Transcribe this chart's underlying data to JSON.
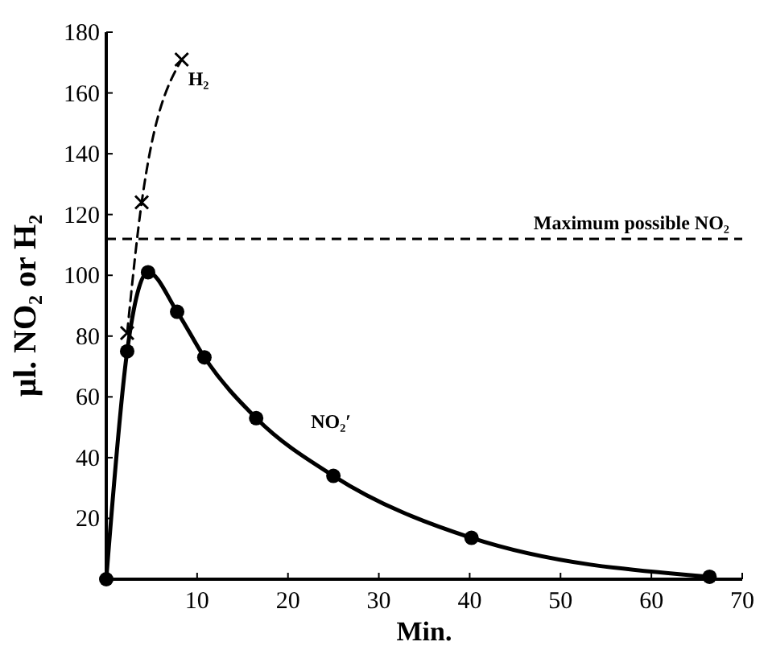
{
  "chart_data": {
    "type": "line",
    "xlabel": "Min.",
    "ylabel": "µl. NO₂ or H₂",
    "xlim": [
      0,
      70
    ],
    "ylim": [
      0,
      180
    ],
    "xticks": [
      10,
      20,
      30,
      40,
      50,
      60,
      70
    ],
    "yticks": [
      20,
      40,
      60,
      80,
      100,
      120,
      140,
      160,
      180
    ],
    "grid": false,
    "legend": false,
    "series": [
      {
        "name": "NO₂′",
        "color": "#000000",
        "marker": "circle",
        "line_style": "solid",
        "x": [
          0,
          2.3,
          4.6,
          7.8,
          10.8,
          16.5,
          25,
          40.2,
          66.4
        ],
        "values": [
          0,
          75,
          101,
          88,
          73,
          53,
          34,
          13.6,
          0.8
        ]
      },
      {
        "name": "H₂",
        "color": "#000000",
        "marker": "cross",
        "line_style": "dashed",
        "x": [
          2.3,
          3.9,
          8.3
        ],
        "values": [
          81,
          124,
          171
        ]
      }
    ],
    "ref_lines": [
      {
        "axis": "y",
        "value": 112,
        "label": "Maximum possible NO₂",
        "line_style": "dashed",
        "color": "#000000"
      }
    ]
  }
}
